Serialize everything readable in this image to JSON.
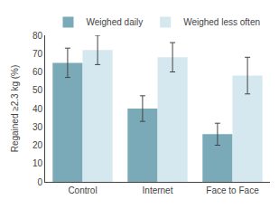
{
  "chart_data": {
    "type": "bar",
    "categories": [
      "Control",
      "Internet",
      "Face to Face"
    ],
    "series": [
      {
        "name": "Weighed daily",
        "color": "#7aaab8",
        "values": [
          65,
          40,
          26
        ],
        "errors_up": [
          8,
          7,
          6
        ],
        "errors_dn": [
          8,
          7,
          6
        ]
      },
      {
        "name": "Weighed less often",
        "color": "#d6e8ef",
        "values": [
          72,
          68,
          58
        ],
        "errors_up": [
          8,
          8,
          10
        ],
        "errors_dn": [
          8,
          8,
          10
        ]
      }
    ],
    "ylabel": "Regained ≥2.3 kg (%)",
    "ylim": [
      0,
      80
    ],
    "yticks": [
      0,
      10,
      20,
      30,
      40,
      50,
      60,
      70,
      80
    ],
    "legend": "top",
    "grid": false
  }
}
